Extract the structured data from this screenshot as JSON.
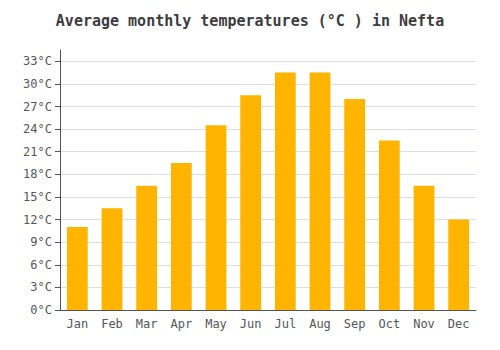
{
  "chart_data": {
    "type": "bar",
    "title": "Average monthly temperatures (°C ) in Nefta",
    "categories": [
      "Jan",
      "Feb",
      "Mar",
      "Apr",
      "May",
      "Jun",
      "Jul",
      "Aug",
      "Sep",
      "Oct",
      "Nov",
      "Dec"
    ],
    "values": [
      11,
      13.5,
      16.5,
      19.5,
      24.5,
      28.5,
      31.5,
      31.5,
      28,
      22.5,
      16.5,
      12
    ],
    "color": "#FFB500",
    "ylim": [
      0,
      34.5
    ],
    "yticks": [
      {
        "value": 0,
        "label": "0°C"
      },
      {
        "value": 3,
        "label": "3°C"
      },
      {
        "value": 6,
        "label": "6°C"
      },
      {
        "value": 9,
        "label": "9°C"
      },
      {
        "value": 12,
        "label": "12°C"
      },
      {
        "value": 15,
        "label": "15°C"
      },
      {
        "value": 18,
        "label": "18°C"
      },
      {
        "value": 21,
        "label": "21°C"
      },
      {
        "value": 24,
        "label": "24°C"
      },
      {
        "value": 27,
        "label": "27°C"
      },
      {
        "value": 30,
        "label": "30°C"
      },
      {
        "value": 33,
        "label": "33°C"
      }
    ],
    "grid": true
  }
}
